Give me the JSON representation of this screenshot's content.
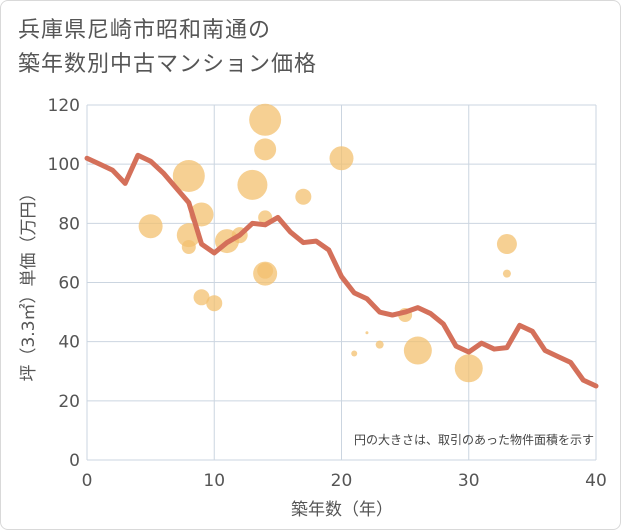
{
  "title_line1": "兵庫県尼崎市昭和南通の",
  "title_line2": "築年数別中古マンション価格",
  "chart_data": {
    "type": "scatter",
    "xlabel": "築年数（年）",
    "ylabel": "坪（3.3㎡）単価（万円）",
    "xlim": [
      0,
      40
    ],
    "ylim": [
      0,
      120
    ],
    "x_ticks": [
      "0",
      "10",
      "20",
      "30",
      "40"
    ],
    "y_ticks": [
      "0",
      "20",
      "40",
      "60",
      "80",
      "100",
      "120"
    ],
    "grid": true,
    "annotation": "円の大きさは、取引のあった物件面積を示す",
    "colors": {
      "line": "#d4705a",
      "bubble": "#f3c06f",
      "grid": "#cbd5e0"
    },
    "line_series": {
      "x": [
        0,
        1,
        2,
        3,
        4,
        5,
        6,
        7,
        8,
        9,
        10,
        11,
        12,
        13,
        14,
        15,
        16,
        17,
        18,
        19,
        20,
        21,
        22,
        23,
        24,
        25,
        26,
        27,
        28,
        29,
        30,
        31,
        32,
        33,
        34,
        35,
        36,
        37,
        38,
        39,
        40
      ],
      "y": [
        102,
        100,
        98,
        93.5,
        103,
        101,
        97,
        92,
        87,
        73,
        70,
        73.5,
        76,
        80,
        79.5,
        82,
        77,
        73.5,
        74,
        71,
        62,
        56.5,
        54.5,
        50,
        49,
        50,
        51.5,
        49.5,
        46,
        38.5,
        36.5,
        39.5,
        37.5,
        38,
        45.5,
        43.5,
        37,
        35,
        33,
        27,
        25
      ]
    },
    "bubbles": [
      {
        "x": 5,
        "y": 79,
        "size": 12
      },
      {
        "x": 8,
        "y": 96,
        "size": 16
      },
      {
        "x": 8,
        "y": 76,
        "size": 12
      },
      {
        "x": 8,
        "y": 72,
        "size": 7
      },
      {
        "x": 9,
        "y": 83,
        "size": 12
      },
      {
        "x": 9,
        "y": 55,
        "size": 8
      },
      {
        "x": 10,
        "y": 53,
        "size": 8
      },
      {
        "x": 11,
        "y": 74,
        "size": 12
      },
      {
        "x": 12,
        "y": 76,
        "size": 8
      },
      {
        "x": 13,
        "y": 93,
        "size": 15
      },
      {
        "x": 14,
        "y": 115,
        "size": 16
      },
      {
        "x": 14,
        "y": 105,
        "size": 11
      },
      {
        "x": 14,
        "y": 82,
        "size": 7
      },
      {
        "x": 14,
        "y": 64,
        "size": 8
      },
      {
        "x": 14,
        "y": 63,
        "size": 12
      },
      {
        "x": 17,
        "y": 89,
        "size": 8
      },
      {
        "x": 20,
        "y": 102,
        "size": 12
      },
      {
        "x": 21,
        "y": 36,
        "size": 3
      },
      {
        "x": 22,
        "y": 43,
        "size": 1.5
      },
      {
        "x": 23,
        "y": 39,
        "size": 4
      },
      {
        "x": 25,
        "y": 49,
        "size": 7
      },
      {
        "x": 26,
        "y": 37,
        "size": 14
      },
      {
        "x": 30,
        "y": 31,
        "size": 14
      },
      {
        "x": 33,
        "y": 73,
        "size": 10
      },
      {
        "x": 33,
        "y": 63,
        "size": 4
      }
    ]
  }
}
